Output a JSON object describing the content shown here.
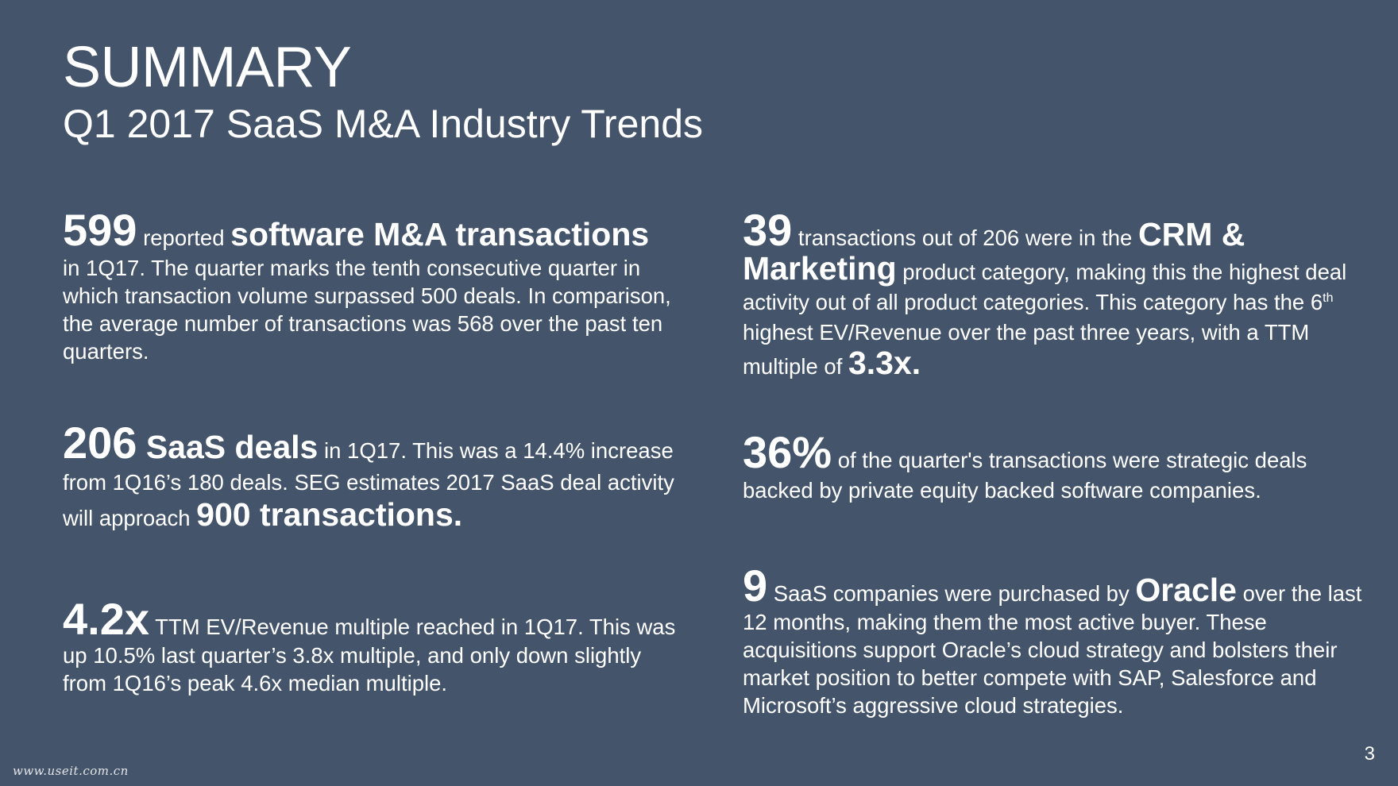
{
  "slide": {
    "title": "SUMMARY",
    "subtitle": "Q1 2017 SaaS M&A Industry Trends",
    "page_number": "3",
    "watermark": "www.useit.com.cn",
    "colors": {
      "background": "#44546A",
      "text": "#FFFFFF"
    }
  },
  "blocks": {
    "transactions": {
      "big": "599",
      "pre": " reported ",
      "emph": "software M&A transactions",
      "body": "in 1Q17. The quarter marks the tenth consecutive quarter in which transaction volume surpassed 500 deals. In comparison, the average number of transactions was 568 over the past ten quarters."
    },
    "saas_deals": {
      "big": "206",
      "emph": " SaaS deals",
      "body1": " in 1Q17. This was a 14.4% increase from 1Q16’s 180 deals.  SEG estimates 2017 SaaS deal activity will approach ",
      "emph2": "900 transactions",
      "end": "."
    },
    "multiple": {
      "big": "4.2x",
      "body": " TTM EV/Revenue multiple reached in 1Q17. This was up 10.5% last quarter’s 3.8x multiple, and only down slightly from 1Q16’s peak 4.6x median multiple."
    },
    "crm": {
      "big": "39",
      "pre": " transactions out of 206 were in the ",
      "emph": "CRM & Marketing",
      "body1": " product category, making this the highest deal activity out of all product categories. This category has the 6",
      "sup": "th",
      "body2": " highest EV/Revenue over the past three years, with a TTM multiple of ",
      "emph2": "3.3x",
      "end": "."
    },
    "strategic": {
      "big": "36%",
      "body": " of the quarter's transactions were strategic deals backed by private equity backed software companies."
    },
    "oracle": {
      "big": "9",
      "pre": " SaaS companies were purchased by ",
      "emph": "Oracle",
      "body": " over the last 12 months, making them the most active buyer. These acquisitions support Oracle’s cloud strategy and bolsters their market position to better compete with SAP, Salesforce and Microsoft’s aggressive cloud strategies."
    }
  }
}
